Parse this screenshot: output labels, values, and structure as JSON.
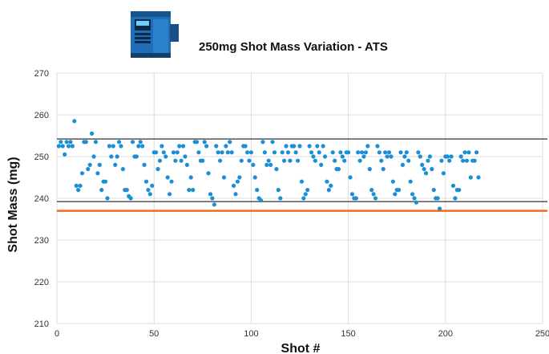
{
  "chart_data": {
    "type": "scatter",
    "title": "250mg Shot Mass Variation - ATS",
    "xlabel": "Shot #",
    "ylabel": "Shot Mass (mg)",
    "xlim": [
      0,
      250
    ],
    "ylim": [
      210,
      270
    ],
    "x_ticks": [
      "0",
      "50",
      "100",
      "150",
      "200",
      "250"
    ],
    "y_ticks": [
      "270",
      "260",
      "250",
      "240",
      "230",
      "220",
      "210"
    ],
    "grid": true,
    "point_color": "#1c8fd4",
    "reference_lines": [
      {
        "value": 254.2,
        "color": "#333333"
      },
      {
        "value": 239.2,
        "color": "#333333"
      },
      {
        "value": 237.0,
        "color": "#f26b21"
      }
    ],
    "y_values": [
      252.5,
      253.5,
      252.5,
      250.5,
      253.5,
      252.5,
      253.5,
      252.5,
      258.5,
      243.0,
      242.0,
      243.0,
      246.0,
      253.5,
      253.5,
      247.0,
      248.0,
      255.5,
      250.0,
      253.5,
      246.0,
      248.0,
      242.0,
      244.0,
      244.0,
      240.0,
      252.5,
      250.0,
      252.5,
      248.0,
      250.0,
      253.5,
      252.5,
      247.0,
      242.0,
      242.0,
      240.5,
      240.0,
      253.5,
      250.0,
      250.0,
      252.5,
      253.5,
      252.5,
      248.0,
      244.0,
      242.0,
      241.0,
      243.0,
      251.0,
      251.0,
      247.0,
      249.0,
      252.5,
      251.0,
      250.0,
      245.0,
      241.0,
      244.0,
      251.0,
      249.0,
      251.0,
      252.5,
      249.0,
      252.5,
      250.0,
      248.0,
      242.0,
      245.0,
      242.0,
      253.5,
      253.5,
      251.0,
      249.0,
      249.0,
      253.5,
      252.5,
      246.0,
      241.0,
      240.0,
      238.5,
      252.5,
      251.0,
      249.0,
      251.0,
      245.0,
      252.5,
      251.0,
      253.5,
      251.0,
      243.0,
      241.0,
      244.0,
      245.0,
      249.0,
      252.5,
      252.5,
      251.0,
      249.0,
      251.0,
      248.0,
      245.0,
      242.0,
      240.0,
      239.5,
      253.5,
      251.0,
      248.0,
      249.0,
      248.0,
      253.5,
      251.0,
      247.0,
      242.0,
      240.0,
      251.0,
      249.0,
      252.5,
      251.0,
      249.0,
      252.5,
      252.5,
      251.0,
      249.0,
      252.5,
      244.0,
      240.0,
      241.0,
      242.0,
      252.5,
      251.0,
      250.0,
      249.0,
      252.5,
      251.0,
      248.0,
      252.5,
      250.0,
      244.0,
      242.0,
      243.0,
      251.0,
      249.0,
      247.0,
      247.0,
      251.0,
      250.0,
      249.0,
      251.0,
      251.0,
      245.0,
      241.0,
      240.0,
      240.0,
      251.0,
      249.0,
      251.0,
      250.0,
      251.0,
      252.5,
      247.0,
      242.0,
      241.0,
      240.0,
      252.5,
      251.0,
      249.0,
      247.0,
      251.0,
      250.0,
      251.0,
      250.0,
      244.0,
      241.0,
      242.0,
      242.0,
      251.0,
      248.0,
      250.0,
      251.0,
      249.0,
      244.0,
      241.0,
      240.0,
      239.0,
      251.0,
      250.0,
      248.0,
      247.0,
      246.0,
      249.0,
      250.0,
      247.0,
      242.0,
      240.0,
      240.0,
      237.5,
      249.0,
      246.0,
      250.0,
      250.0,
      249.0,
      250.0,
      243.0,
      240.0,
      242.0,
      242.0,
      250.0,
      249.0,
      251.0,
      249.0,
      251.0,
      245.0,
      249.0,
      249.0,
      251.0,
      245.0
    ]
  }
}
